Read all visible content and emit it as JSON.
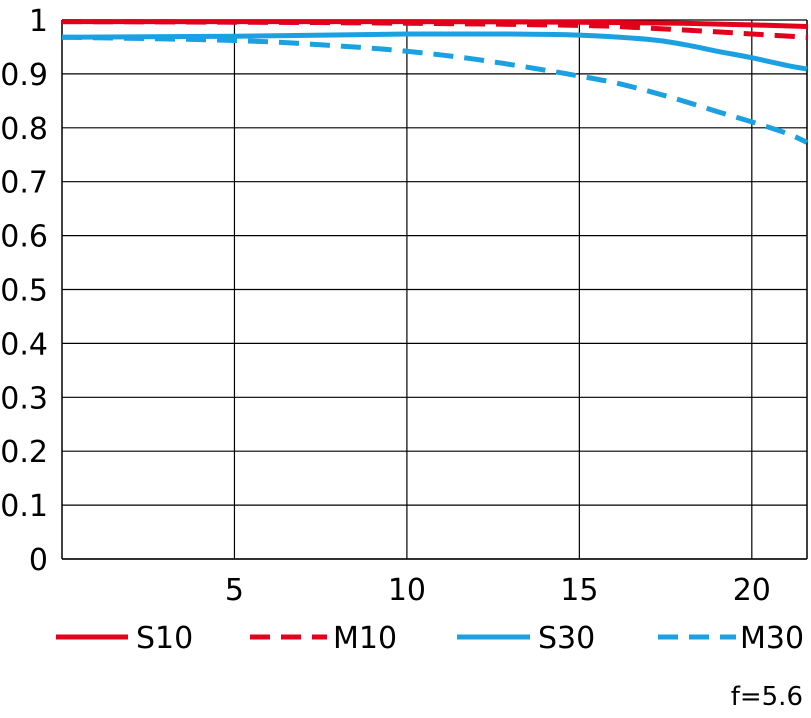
{
  "chart_data": {
    "type": "line",
    "xlim": [
      0,
      21.6
    ],
    "ylim": [
      0,
      1
    ],
    "x_ticks": [
      5,
      10,
      15,
      20
    ],
    "y_ticks": [
      0,
      0.1,
      0.2,
      0.3,
      0.4,
      0.5,
      0.6,
      0.7,
      0.8,
      0.9,
      1
    ],
    "x_tick_labels": [
      "5",
      "10",
      "15",
      "20"
    ],
    "y_tick_labels": [
      "0",
      "0.1",
      "0.2",
      "0.3",
      "0.4",
      "0.5",
      "0.6",
      "0.7",
      "0.8",
      "0.9",
      "1"
    ],
    "grid": true,
    "legend_position": "bottom",
    "annotation": "f=5.6",
    "series": [
      {
        "name": "S10",
        "color": "#e3001b",
        "dash": "solid",
        "x": [
          0,
          5,
          10,
          15,
          18,
          20,
          21.6
        ],
        "y": [
          0.997,
          0.997,
          0.997,
          0.996,
          0.994,
          0.991,
          0.988
        ]
      },
      {
        "name": "M10",
        "color": "#e3001b",
        "dash": "dashed",
        "x": [
          0,
          5,
          10,
          15,
          17,
          19,
          20,
          21.6
        ],
        "y": [
          0.997,
          0.996,
          0.994,
          0.99,
          0.985,
          0.978,
          0.974,
          0.968
        ]
      },
      {
        "name": "S30",
        "color": "#1ba1e2",
        "dash": "solid",
        "x": [
          0,
          5,
          10,
          13,
          15,
          17,
          18,
          19,
          20,
          21,
          21.6
        ],
        "y": [
          0.968,
          0.97,
          0.974,
          0.974,
          0.972,
          0.964,
          0.955,
          0.942,
          0.93,
          0.916,
          0.909
        ]
      },
      {
        "name": "M30",
        "color": "#1ba1e2",
        "dash": "dashed",
        "x": [
          0,
          5,
          8,
          10,
          12,
          14,
          15,
          16,
          17,
          18,
          19,
          20,
          21,
          21.6
        ],
        "y": [
          0.968,
          0.962,
          0.952,
          0.942,
          0.927,
          0.907,
          0.896,
          0.884,
          0.868,
          0.85,
          0.83,
          0.811,
          0.79,
          0.773
        ]
      }
    ]
  }
}
